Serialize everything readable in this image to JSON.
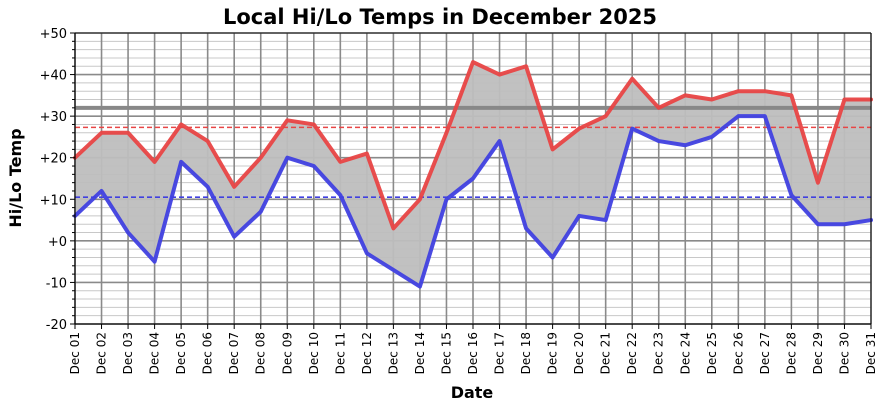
{
  "chart_data": {
    "type": "line",
    "title": "Local Hi/Lo Temps in December 2025",
    "xlabel": "Date",
    "ylabel": "Hi/Lo Temp",
    "ylim": [
      -20,
      50
    ],
    "yticks": [
      -20,
      -10,
      0,
      10,
      20,
      30,
      40,
      50
    ],
    "ytick_labels": [
      "-20",
      "-10",
      "+0",
      "+10",
      "+20",
      "+30",
      "+40",
      "+50"
    ],
    "categories": [
      "Dec 01",
      "Dec 02",
      "Dec 03",
      "Dec 04",
      "Dec 05",
      "Dec 06",
      "Dec 07",
      "Dec 08",
      "Dec 09",
      "Dec 10",
      "Dec 11",
      "Dec 12",
      "Dec 13",
      "Dec 14",
      "Dec 15",
      "Dec 16",
      "Dec 17",
      "Dec 18",
      "Dec 19",
      "Dec 20",
      "Dec 21",
      "Dec 22",
      "Dec 23",
      "Dec 24",
      "Dec 25",
      "Dec 26",
      "Dec 27",
      "Dec 28",
      "Dec 29",
      "Dec 30",
      "Dec 31"
    ],
    "series": [
      {
        "name": "",
        "color": "#e84545",
        "values": [
          20,
          26,
          26,
          19,
          28,
          24,
          13,
          20,
          29,
          28,
          19,
          21,
          3,
          10,
          26,
          43,
          40,
          42,
          22,
          27,
          30,
          39,
          32,
          35,
          34,
          36,
          36,
          35,
          14,
          34,
          34
        ]
      },
      {
        "name": "",
        "color": "#4040e0",
        "values": [
          6,
          12,
          2,
          -5,
          19,
          13,
          1,
          7,
          20,
          18,
          11,
          -3,
          -7,
          -11,
          10,
          15,
          24,
          3,
          -4,
          6,
          5,
          27,
          24,
          23,
          25,
          30,
          30,
          11,
          4,
          4,
          5
        ]
      }
    ],
    "fill_between": {
      "color": "#bebebe"
    },
    "reference_lines": [
      {
        "y": 32,
        "color": "#888888",
        "style": "solid"
      },
      {
        "y": 27.3,
        "color": "#e84545",
        "style": "dashed"
      },
      {
        "y": 10.5,
        "color": "#4040e0",
        "style": "dashed"
      }
    ],
    "grid": true
  }
}
